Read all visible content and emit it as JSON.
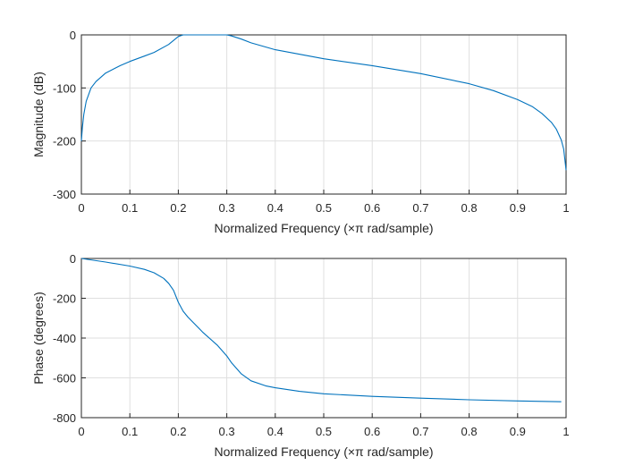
{
  "chart_data": [
    {
      "type": "line",
      "xlabel": "Normalized Frequency  (×π rad/sample)",
      "ylabel": "Magnitude (dB)",
      "xlim": [
        0,
        1
      ],
      "ylim": [
        -300,
        0
      ],
      "xticks": [
        "0",
        "0.1",
        "0.2",
        "0.3",
        "0.4",
        "0.5",
        "0.6",
        "0.7",
        "0.8",
        "0.9",
        "1"
      ],
      "yticks": [
        "-300",
        "-200",
        "-100",
        "0"
      ],
      "grid": true,
      "color": "#0072BD",
      "x": [
        0,
        0.002,
        0.005,
        0.01,
        0.02,
        0.03,
        0.05,
        0.08,
        0.1,
        0.13,
        0.15,
        0.18,
        0.2,
        0.21,
        0.25,
        0.3,
        0.31,
        0.33,
        0.35,
        0.4,
        0.5,
        0.6,
        0.7,
        0.8,
        0.85,
        0.9,
        0.93,
        0.95,
        0.97,
        0.98,
        0.99,
        0.995,
        1
      ],
      "y": [
        -200,
        -175,
        -150,
        -125,
        -100,
        -88,
        -72,
        -58,
        -50,
        -40,
        -33,
        -18,
        -3,
        0,
        0,
        0,
        -2,
        -8,
        -15,
        -28,
        -45,
        -58,
        -73,
        -92,
        -105,
        -122,
        -135,
        -148,
        -165,
        -178,
        -198,
        -215,
        -255
      ]
    },
    {
      "type": "line",
      "xlabel": "Normalized Frequency  (×π rad/sample)",
      "ylabel": "Phase (degrees)",
      "xlim": [
        0,
        1
      ],
      "ylim": [
        -800,
        0
      ],
      "xticks": [
        "0",
        "0.1",
        "0.2",
        "0.3",
        "0.4",
        "0.5",
        "0.6",
        "0.7",
        "0.8",
        "0.9",
        "1"
      ],
      "yticks": [
        "-800",
        "-600",
        "-400",
        "-200",
        "0"
      ],
      "grid": true,
      "color": "#0072BD",
      "x": [
        0,
        0.05,
        0.1,
        0.13,
        0.15,
        0.17,
        0.18,
        0.19,
        0.2,
        0.21,
        0.22,
        0.25,
        0.28,
        0.3,
        0.31,
        0.33,
        0.35,
        0.38,
        0.4,
        0.45,
        0.5,
        0.6,
        0.7,
        0.8,
        0.9,
        0.99
      ],
      "y": [
        0,
        -18,
        -38,
        -55,
        -72,
        -100,
        -125,
        -160,
        -220,
        -265,
        -295,
        -370,
        -435,
        -490,
        -525,
        -580,
        -615,
        -640,
        -650,
        -668,
        -680,
        -693,
        -702,
        -710,
        -716,
        -720
      ]
    }
  ]
}
